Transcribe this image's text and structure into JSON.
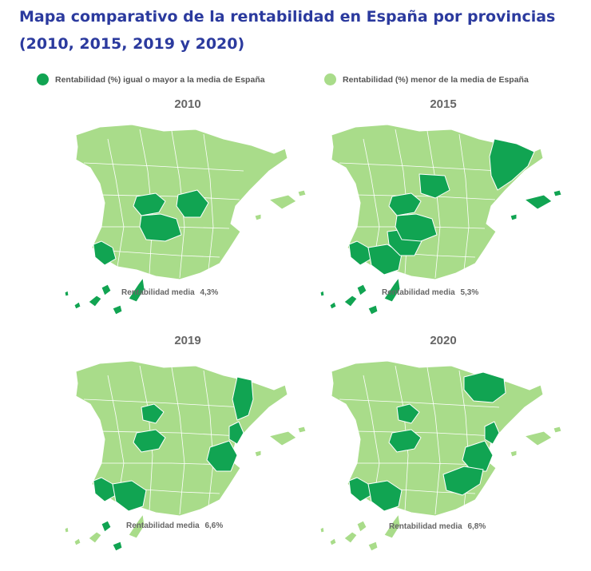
{
  "title": "Mapa comparativo de la rentabilidad en España por provincias (2010, 2015, 2019 y 2020)",
  "legend": {
    "high": {
      "label": "Rentabilidad (%) igual o mayor a la media de España",
      "color": "#11a452"
    },
    "low": {
      "label": "Rentabilidad (%) menor de la media de España",
      "color": "#a9dc8a"
    }
  },
  "colors": {
    "high": "#11a452",
    "low": "#a9dc8a",
    "border": "#ffffff"
  },
  "maps": [
    {
      "year": "2010",
      "avg_label": "Rentabilidad media",
      "avg_value": "4,3%",
      "high_regions": [
        "huelva",
        "madrid-area",
        "cuenca",
        "toledo-ciudad-real",
        "canarias"
      ]
    },
    {
      "year": "2015",
      "avg_label": "Rentabilidad media",
      "avg_value": "5,3%",
      "high_regions": [
        "cataluna",
        "baleares",
        "madrid-area",
        "guadalajara",
        "toledo-ciudad-real",
        "huelva",
        "sevilla-cadiz",
        "cordoba",
        "canarias"
      ]
    },
    {
      "year": "2019",
      "avg_label": "Rentabilidad media",
      "avg_value": "6,6%",
      "high_regions": [
        "lleida",
        "valladolid",
        "madrid-area",
        "castellon",
        "valencia",
        "huelva",
        "sevilla-cadiz",
        "tenerife-la-gomera"
      ]
    },
    {
      "year": "2020",
      "avg_label": "Rentabilidad media",
      "avg_value": "6,8%",
      "high_regions": [
        "lleida-girona-north",
        "valladolid",
        "madrid-area",
        "castellon",
        "valencia",
        "alicante-murcia",
        "huelva",
        "sevilla-cadiz"
      ]
    }
  ]
}
